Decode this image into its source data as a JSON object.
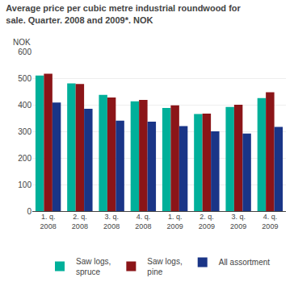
{
  "chart_data": {
    "type": "bar",
    "title": "Average price per cubic metre industrial roundwood for\nsale. Quarter. 2008 and 2009*. NOK",
    "ylabel": "NOK",
    "categories": [
      "1. q.\n2008",
      "2. q.\n2008",
      "3. q.\n2008",
      "4. q.\n2008",
      "1. q.\n2009",
      "2. q.\n2009",
      "3. q.\n2009",
      "4. q.\n2009"
    ],
    "series": [
      {
        "name": "Saw logs,\nspruce",
        "color": "#00b09a",
        "values": [
          510,
          480,
          437,
          413,
          388,
          365,
          392,
          425
        ]
      },
      {
        "name": "Saw logs,\npine",
        "color": "#8b1518",
        "values": [
          517,
          478,
          427,
          418,
          398,
          367,
          400,
          447
        ]
      },
      {
        "name": "All assortment",
        "color": "#1a3587",
        "values": [
          408,
          385,
          340,
          336,
          320,
          300,
          292,
          317
        ]
      }
    ],
    "ylim": [
      0,
      600
    ],
    "yticks": [
      0,
      100,
      200,
      300,
      400,
      500,
      600
    ],
    "grid": true,
    "legend": "bottom"
  }
}
